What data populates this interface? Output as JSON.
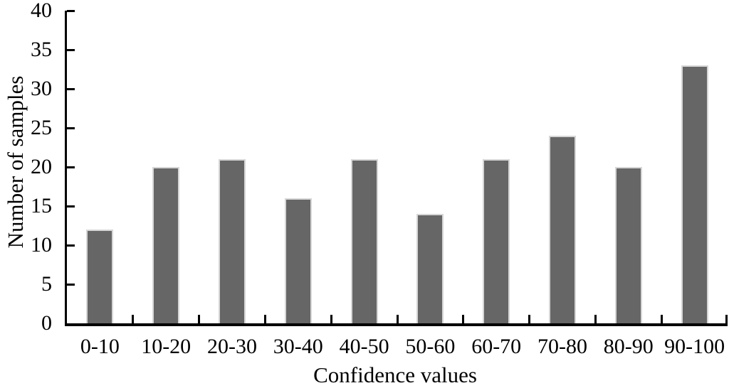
{
  "figure": {
    "background": "#ffffff",
    "text_color": "#000000"
  },
  "chart_data": {
    "type": "bar",
    "title": "",
    "categories": [
      "0-10",
      "10-20",
      "20-30",
      "30-40",
      "40-50",
      "50-60",
      "60-70",
      "70-80",
      "80-90",
      "90-100"
    ],
    "values": [
      12,
      20,
      21,
      16,
      21,
      14,
      21,
      24,
      20,
      33
    ],
    "xlabel": "Confidence values",
    "ylabel": "Number of samples",
    "ylim": [
      0,
      40
    ],
    "yticks": [
      0,
      5,
      10,
      15,
      20,
      25,
      30,
      35,
      40
    ],
    "grid": "off",
    "legend": "none",
    "bar_color": "#666666",
    "bar_border_color": "#d6d6d6",
    "axis_color": "#000000",
    "tick_direction": "in"
  }
}
